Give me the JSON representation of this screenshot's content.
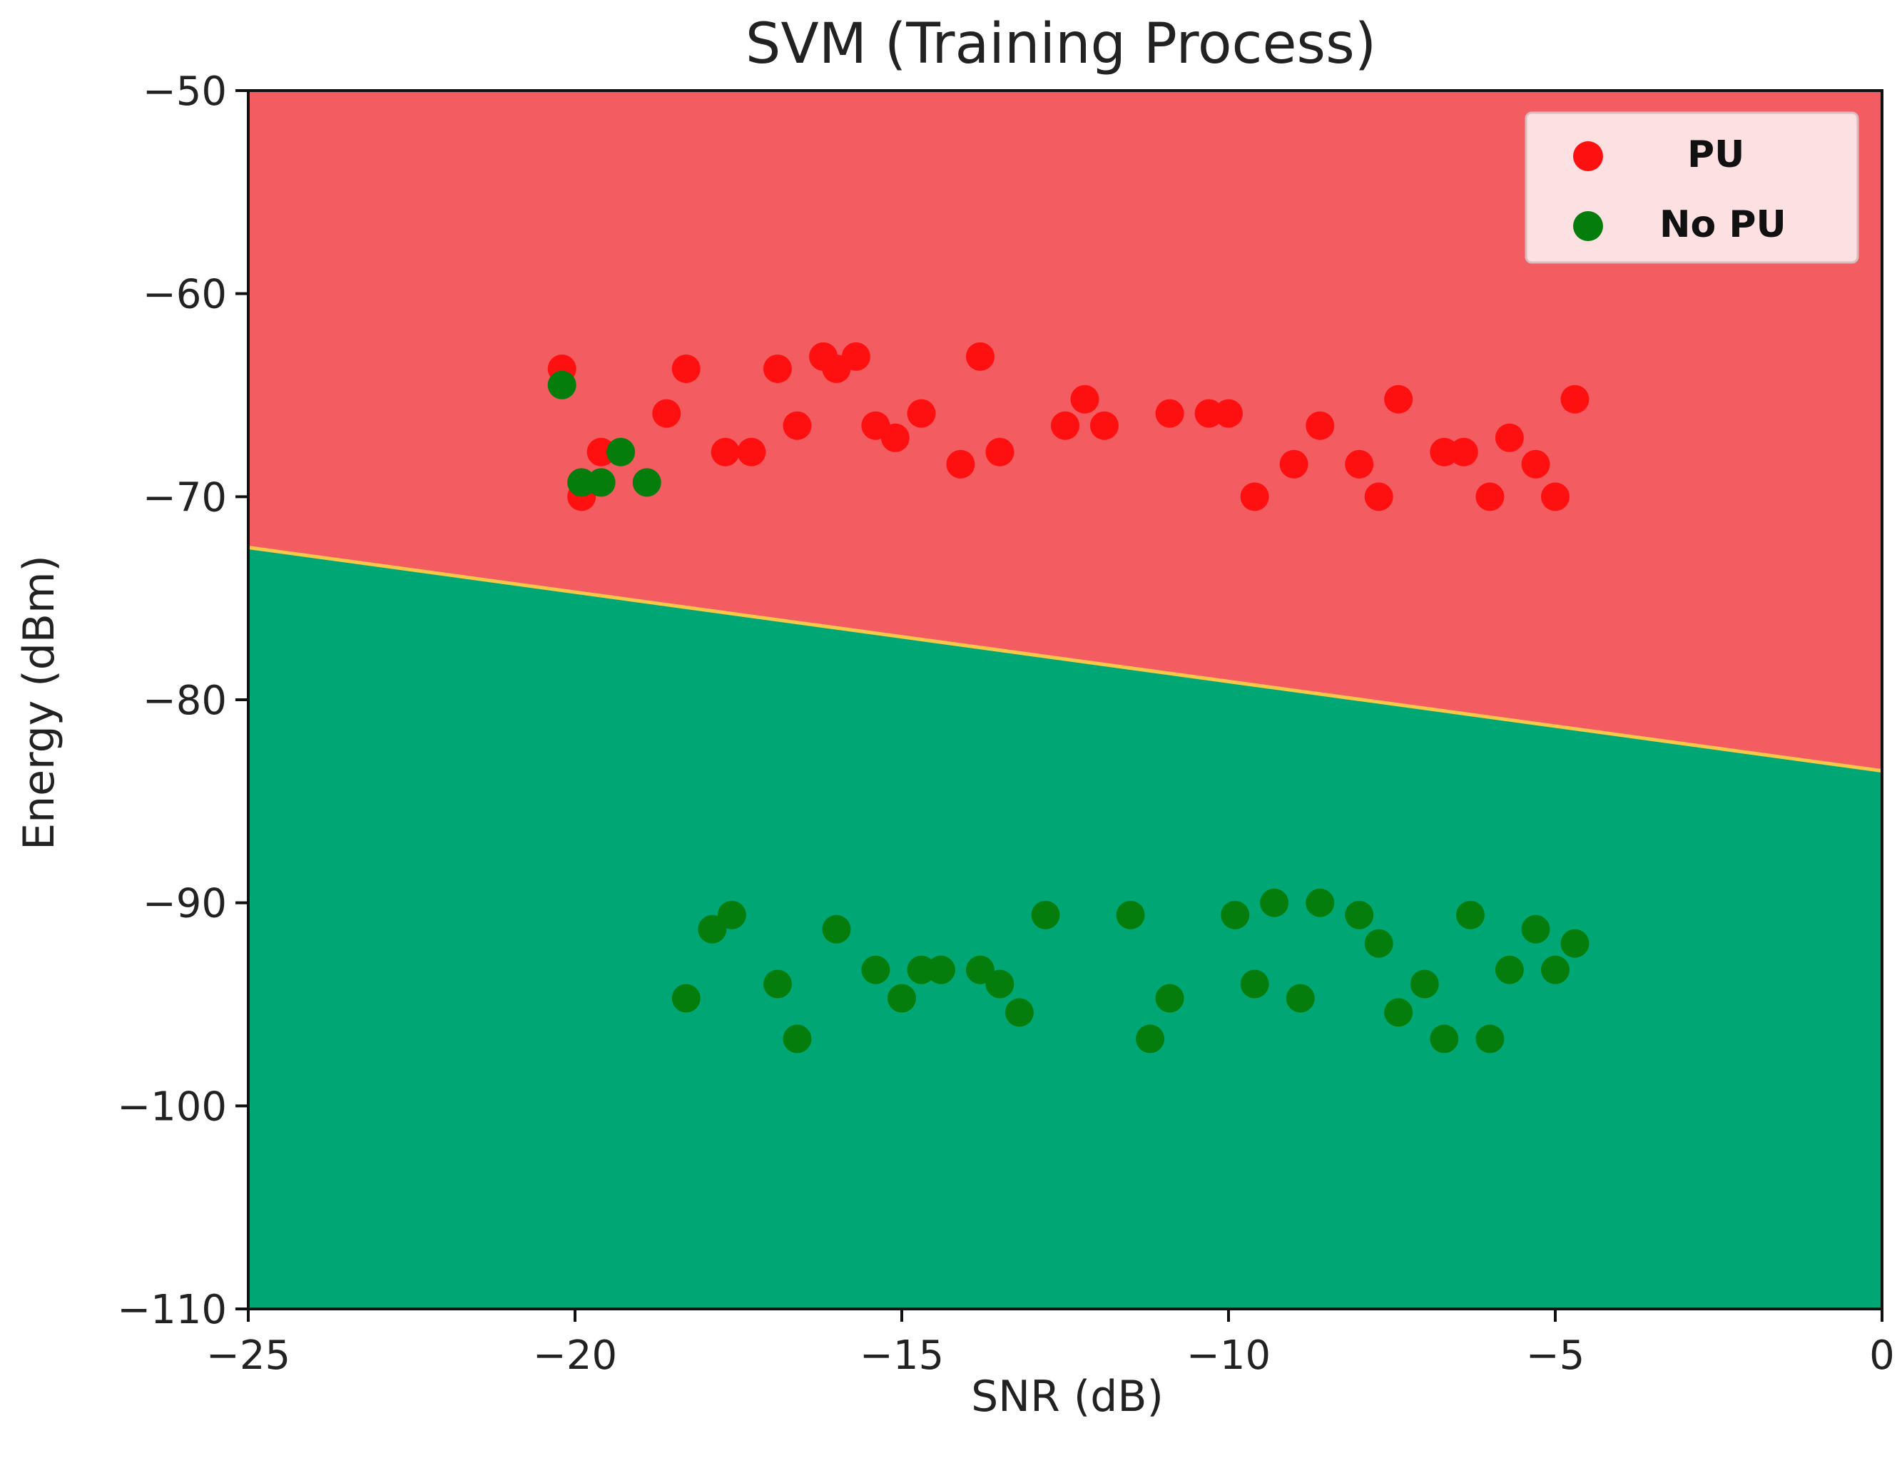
{
  "chart_data": {
    "type": "scatter",
    "title": "SVM (Training Process)",
    "xlabel": "SNR (dB)",
    "ylabel": "Energy (dBm)",
    "xlim": [
      -25,
      0
    ],
    "ylim": [
      -110,
      -50
    ],
    "x_ticks": [
      -25,
      -20,
      -15,
      -10,
      -5,
      0
    ],
    "y_ticks": [
      -50,
      -60,
      -70,
      -80,
      -90,
      -100,
      -110
    ],
    "x_tick_labels": [
      "−25",
      "−20",
      "−15",
      "−10",
      "−5",
      "0"
    ],
    "y_tick_labels": [
      "−50",
      "−60",
      "−70",
      "−80",
      "−90",
      "−100",
      "−110"
    ],
    "grid": false,
    "legend_position": "top-right",
    "decision_boundary": {
      "x": [
        -25,
        0
      ],
      "y": [
        -72.5,
        -83.5
      ]
    },
    "regions": [
      {
        "name": "PU region",
        "color": "#f35c60"
      },
      {
        "name": "No PU region",
        "color": "#00a775"
      }
    ],
    "series": [
      {
        "name": "PU",
        "color": "#ff1010",
        "points": [
          {
            "x": -20.2,
            "y": -63.7
          },
          {
            "x": -19.9,
            "y": -70.0
          },
          {
            "x": -19.6,
            "y": -67.8
          },
          {
            "x": -18.6,
            "y": -65.9
          },
          {
            "x": -18.3,
            "y": -63.7
          },
          {
            "x": -17.7,
            "y": -67.8
          },
          {
            "x": -17.3,
            "y": -67.8
          },
          {
            "x": -16.9,
            "y": -63.7
          },
          {
            "x": -16.6,
            "y": -66.5
          },
          {
            "x": -16.2,
            "y": -63.1
          },
          {
            "x": -16.0,
            "y": -63.7
          },
          {
            "x": -15.7,
            "y": -63.1
          },
          {
            "x": -15.4,
            "y": -66.5
          },
          {
            "x": -15.1,
            "y": -67.1
          },
          {
            "x": -14.7,
            "y": -65.9
          },
          {
            "x": -14.1,
            "y": -68.4
          },
          {
            "x": -13.8,
            "y": -63.1
          },
          {
            "x": -13.5,
            "y": -67.8
          },
          {
            "x": -12.5,
            "y": -66.5
          },
          {
            "x": -12.2,
            "y": -65.2
          },
          {
            "x": -11.9,
            "y": -66.5
          },
          {
            "x": -10.9,
            "y": -65.9
          },
          {
            "x": -10.3,
            "y": -65.9
          },
          {
            "x": -10.0,
            "y": -65.9
          },
          {
            "x": -9.6,
            "y": -70.0
          },
          {
            "x": -9.0,
            "y": -68.4
          },
          {
            "x": -8.6,
            "y": -66.5
          },
          {
            "x": -8.0,
            "y": -68.4
          },
          {
            "x": -7.7,
            "y": -70.0
          },
          {
            "x": -7.4,
            "y": -65.2
          },
          {
            "x": -6.7,
            "y": -67.8
          },
          {
            "x": -6.4,
            "y": -67.8
          },
          {
            "x": -6.0,
            "y": -70.0
          },
          {
            "x": -5.7,
            "y": -67.1
          },
          {
            "x": -5.3,
            "y": -68.4
          },
          {
            "x": -5.0,
            "y": -70.0
          },
          {
            "x": -4.7,
            "y": -65.2
          }
        ]
      },
      {
        "name": "No PU",
        "color": "#047d0c",
        "points": [
          {
            "x": -20.2,
            "y": -64.5
          },
          {
            "x": -19.9,
            "y": -69.3
          },
          {
            "x": -19.6,
            "y": -69.3
          },
          {
            "x": -19.3,
            "y": -67.8
          },
          {
            "x": -18.9,
            "y": -69.3
          },
          {
            "x": -18.3,
            "y": -94.7
          },
          {
            "x": -17.9,
            "y": -91.3
          },
          {
            "x": -17.6,
            "y": -90.6
          },
          {
            "x": -16.9,
            "y": -94.0
          },
          {
            "x": -16.6,
            "y": -96.7
          },
          {
            "x": -16.0,
            "y": -91.3
          },
          {
            "x": -15.4,
            "y": -93.3
          },
          {
            "x": -15.0,
            "y": -94.7
          },
          {
            "x": -14.7,
            "y": -93.3
          },
          {
            "x": -14.4,
            "y": -93.3
          },
          {
            "x": -13.8,
            "y": -93.3
          },
          {
            "x": -13.5,
            "y": -94.0
          },
          {
            "x": -13.2,
            "y": -95.4
          },
          {
            "x": -12.8,
            "y": -90.6
          },
          {
            "x": -11.5,
            "y": -90.6
          },
          {
            "x": -11.2,
            "y": -96.7
          },
          {
            "x": -10.9,
            "y": -94.7
          },
          {
            "x": -9.9,
            "y": -90.6
          },
          {
            "x": -9.6,
            "y": -94.0
          },
          {
            "x": -9.3,
            "y": -90.0
          },
          {
            "x": -8.9,
            "y": -94.7
          },
          {
            "x": -8.6,
            "y": -90.0
          },
          {
            "x": -8.0,
            "y": -90.6
          },
          {
            "x": -7.7,
            "y": -92.0
          },
          {
            "x": -7.4,
            "y": -95.4
          },
          {
            "x": -7.0,
            "y": -94.0
          },
          {
            "x": -6.7,
            "y": -96.7
          },
          {
            "x": -6.3,
            "y": -90.6
          },
          {
            "x": -6.0,
            "y": -96.7
          },
          {
            "x": -5.7,
            "y": -93.3
          },
          {
            "x": -5.3,
            "y": -91.3
          },
          {
            "x": -5.0,
            "y": -93.3
          },
          {
            "x": -4.7,
            "y": -92.0
          }
        ]
      }
    ]
  }
}
